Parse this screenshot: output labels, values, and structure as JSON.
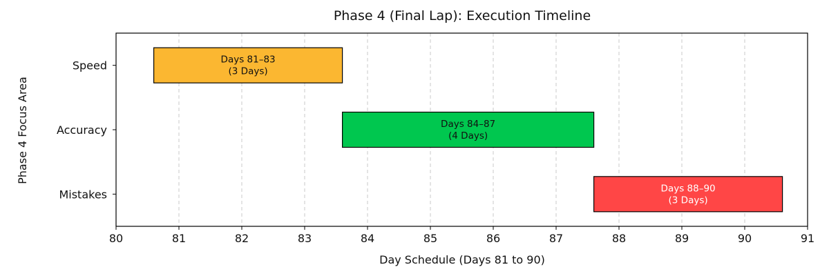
{
  "chart_data": {
    "type": "bar",
    "orientation": "horizontal",
    "title": "Phase 4 (Final Lap): Execution Timeline",
    "xlabel": "Day Schedule (Days 81 to 90)",
    "ylabel": "Phase 4 Focus Area",
    "xlim": [
      80,
      91
    ],
    "xticks": [
      "80",
      "81",
      "82",
      "83",
      "84",
      "85",
      "86",
      "87",
      "88",
      "89",
      "90",
      "91"
    ],
    "grid": "x-dashed",
    "categories": [
      "Speed",
      "Accuracy",
      "Mistakes"
    ],
    "bars": [
      {
        "category": "Speed",
        "start": 80.6,
        "end": 83.6,
        "label_line1": "Days 81–83",
        "label_line2": "(3 Days)",
        "color": "#FBB731",
        "text_color": "#111111"
      },
      {
        "category": "Accuracy",
        "start": 83.6,
        "end": 87.6,
        "label_line1": "Days 84–87",
        "label_line2": "(4 Days)",
        "color": "#00C74F",
        "text_color": "#111111"
      },
      {
        "category": "Mistakes",
        "start": 87.6,
        "end": 90.6,
        "label_line1": "Days 88–90",
        "label_line2": "(3 Days)",
        "color": "#FF4646",
        "text_color": "#FFFFFF"
      }
    ]
  }
}
